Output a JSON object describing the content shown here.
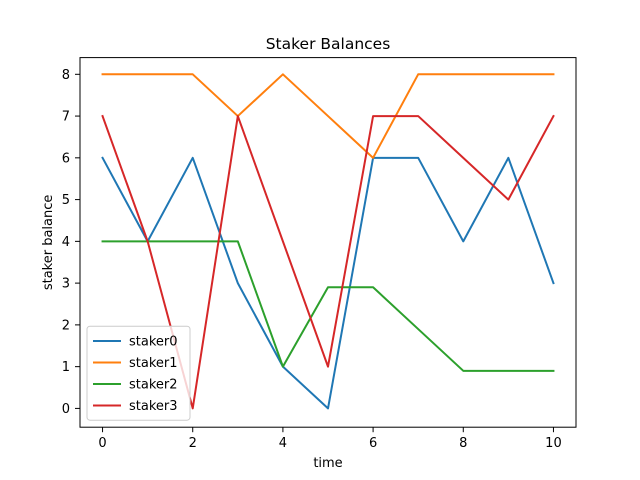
{
  "chart_data": {
    "type": "line",
    "title": "Staker Balances",
    "xlabel": "time",
    "ylabel": "staker balance",
    "x": [
      0,
      1,
      2,
      3,
      4,
      5,
      6,
      7,
      8,
      9,
      10
    ],
    "xlim": [
      -0.5,
      10.5
    ],
    "ylim": [
      -0.45,
      8.4
    ],
    "xticks": [
      0,
      2,
      4,
      6,
      8,
      10
    ],
    "yticks": [
      0,
      1,
      2,
      3,
      4,
      5,
      6,
      7,
      8
    ],
    "grid": false,
    "legend_position": "lower-left",
    "series": [
      {
        "name": "staker0",
        "color": "#1f77b4",
        "values": [
          6,
          4,
          6,
          3,
          1,
          0,
          6,
          6,
          4,
          6,
          3
        ]
      },
      {
        "name": "staker1",
        "color": "#ff7f0e",
        "values": [
          8,
          8,
          8,
          7,
          8,
          7,
          6,
          8,
          8,
          8,
          8
        ]
      },
      {
        "name": "staker2",
        "color": "#2ca02c",
        "values": [
          4,
          4,
          4,
          4,
          1,
          2.9,
          2.9,
          1.9,
          0.9,
          0.9,
          0.9
        ]
      },
      {
        "name": "staker3",
        "color": "#d62728",
        "values": [
          7,
          4,
          0,
          7,
          4,
          1,
          7,
          7,
          6,
          5,
          7
        ]
      }
    ]
  }
}
